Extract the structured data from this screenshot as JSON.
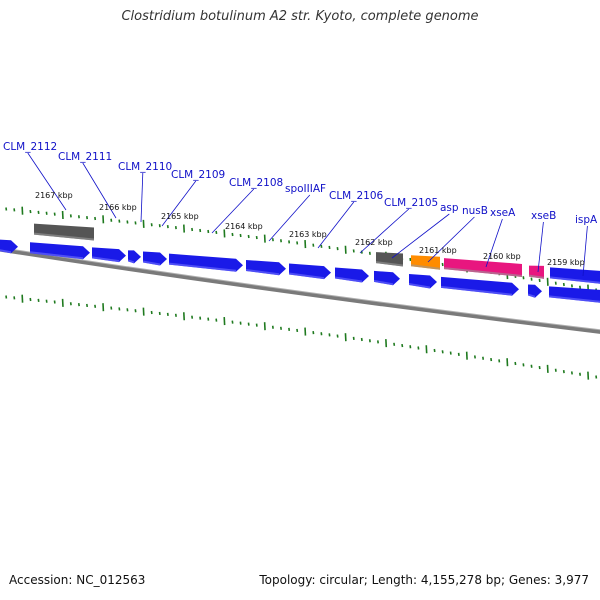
{
  "title": "Clostridium botulinum A2 str. Kyoto, complete genome",
  "footer": {
    "accession": "Accession: NC_012563",
    "summary": "Topology: circular; Length: 4,155,278 bp; Genes: 3,977"
  },
  "colors": {
    "cds": "#1a1ae8",
    "cds_light": "#7070ff",
    "gray_gene": "#555555",
    "orange_gene": "#ff8c00",
    "pink_gene": "#e8167f",
    "backbone": "#808080",
    "gc_ticks": "#1f7a1f",
    "label": "#1010c8"
  },
  "gene_labels": [
    "CLM_2112",
    "CLM_2111",
    "CLM_2110",
    "CLM_2109",
    "CLM_2108",
    "spoIIIAF",
    "CLM_2106",
    "CLM_2105",
    "asp",
    "nusB",
    "xseA",
    "xseB",
    "ispA"
  ],
  "kbp_labels": [
    "2167 kbp",
    "2166 kbp",
    "2165 kbp",
    "2164 kbp",
    "2163 kbp",
    "2162 kbp",
    "2161 kbp",
    "2160 kbp",
    "2159 kbp"
  ]
}
